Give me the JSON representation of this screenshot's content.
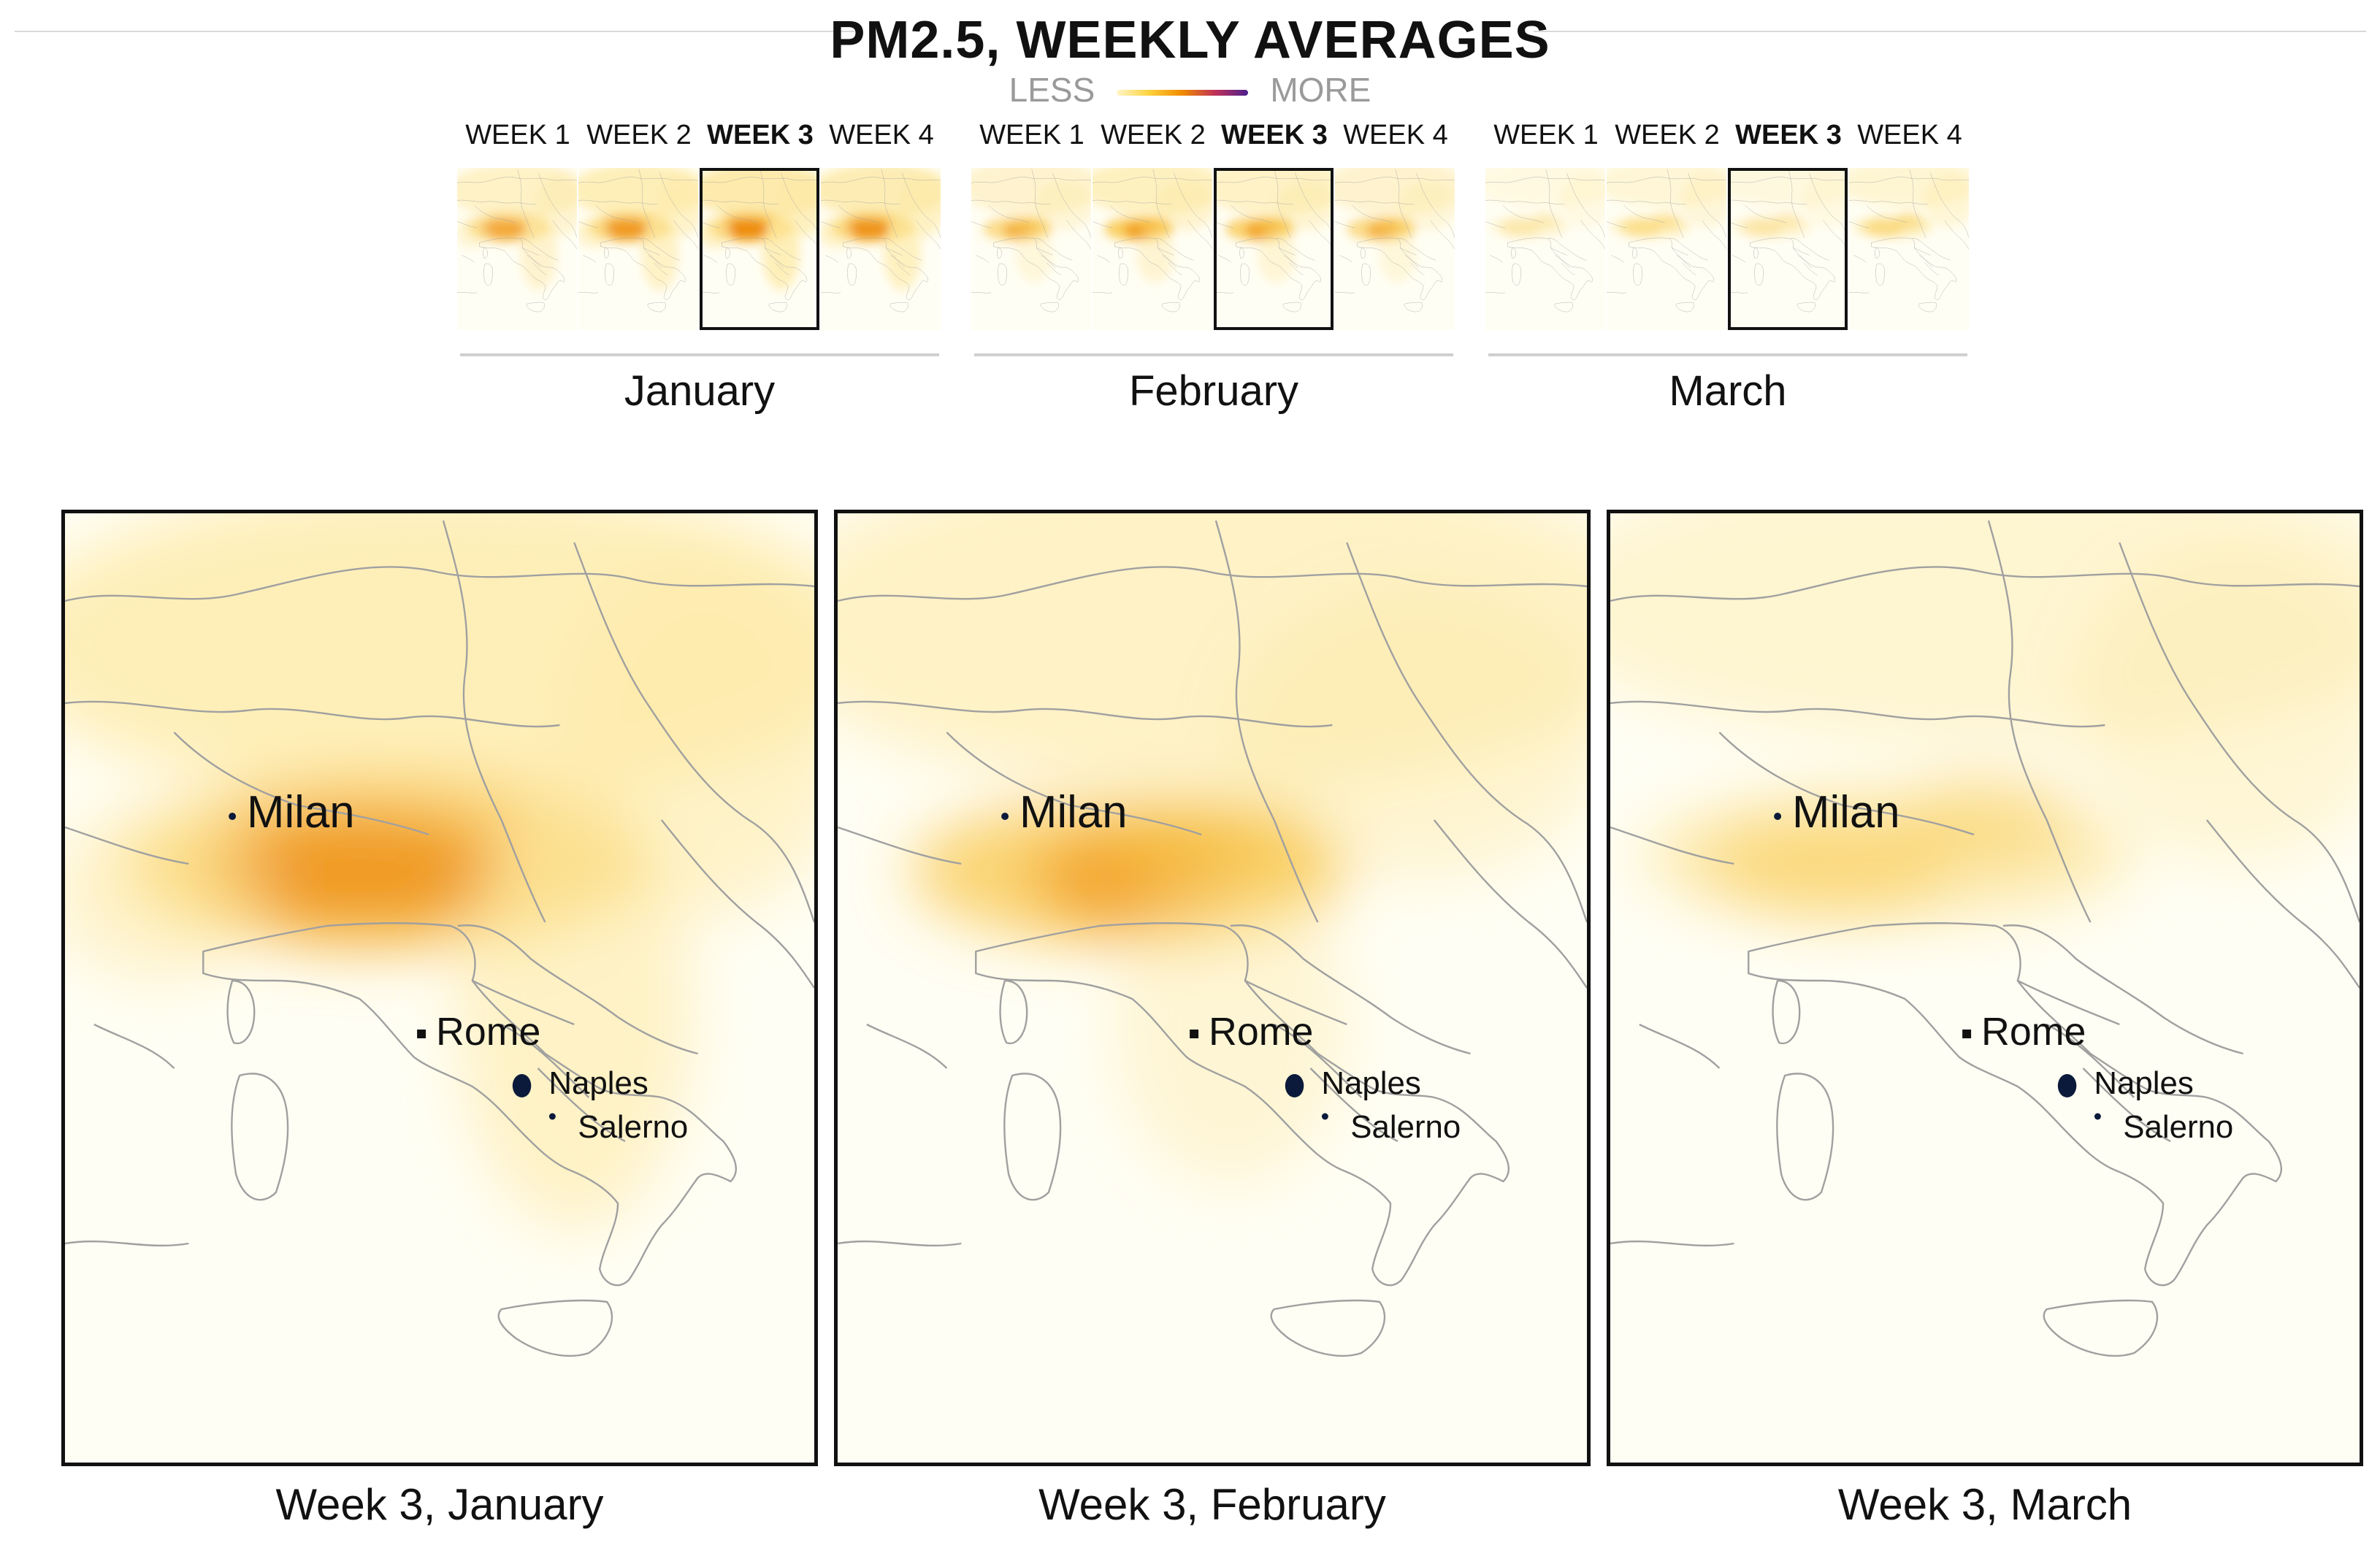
{
  "title": "PM2.5, WEEKLY AVERAGES",
  "legend": {
    "less": "LESS",
    "more": "MORE"
  },
  "months": [
    {
      "name": "January",
      "weeks": [
        "WEEK 1",
        "WEEK 2",
        "WEEK 3",
        "WEEK 4"
      ],
      "selected_week": 3
    },
    {
      "name": "February",
      "weeks": [
        "WEEK 1",
        "WEEK 2",
        "WEEK 3",
        "WEEK 4"
      ],
      "selected_week": 3
    },
    {
      "name": "March",
      "weeks": [
        "WEEK 1",
        "WEEK 2",
        "WEEK 3",
        "WEEK 4"
      ],
      "selected_week": 3
    }
  ],
  "panels": [
    {
      "caption": "Week 3, January"
    },
    {
      "caption": "Week 3, February"
    },
    {
      "caption": "Week 3, March"
    }
  ],
  "cities": {
    "milan": "Milan",
    "rome": "Rome",
    "naples": "Naples",
    "salerno": "Salerno"
  },
  "colors": {
    "haze_light": "#fde9a6",
    "haze_mid": "#f8c23a",
    "haze_dark": "#ee8c10",
    "border": "#a0a0a0"
  }
}
